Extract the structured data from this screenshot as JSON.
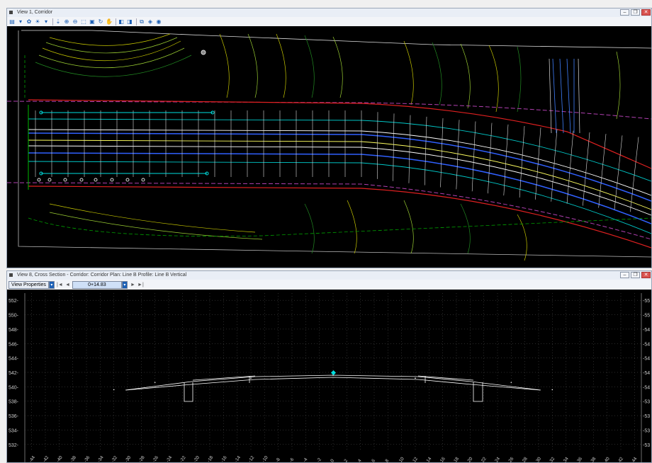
{
  "view1": {
    "title": "View 1, Corridor",
    "toolbar_icons": [
      "view-attributes-icon",
      "dropdown-icon",
      "display-style-icon",
      "brightness-icon",
      "dropdown-icon",
      "update-icon",
      "zoom-in-icon",
      "zoom-out-icon",
      "window-area-icon",
      "fit-view-icon",
      "rotate-icon",
      "pan-icon",
      "previous-view-icon",
      "next-view-icon",
      "copy-view-icon",
      "view-3d-icon",
      "clip-volume-icon"
    ]
  },
  "view8": {
    "title": "View 8, Cross Section - Corridor: Corridor Plan: Line B Profile: Line B Vertical",
    "view_properties_label": "View Properties",
    "station_value": "0+14.83",
    "nav_first": "|◄",
    "nav_prev": "◄",
    "nav_next": "►",
    "nav_last": "►|"
  },
  "window_buttons": {
    "minimize": "–",
    "restore": "❐",
    "close": "✕"
  },
  "chart_data": {
    "type": "line",
    "y_ticks": [
      "552",
      "550",
      "548",
      "546",
      "544",
      "542",
      "540",
      "538",
      "536",
      "534",
      "532"
    ],
    "y_ticks_right": [
      "55",
      "55",
      "54",
      "54",
      "54",
      "54",
      "54",
      "53",
      "53",
      "53",
      "53"
    ],
    "x_ticks": [
      "-44",
      "-42",
      "-40",
      "-38",
      "-36",
      "-34",
      "-32",
      "-30",
      "-28",
      "-26",
      "-24",
      "-22",
      "-20",
      "-18",
      "-16",
      "-14",
      "-12",
      "-10",
      "-8",
      "-6",
      "-4",
      "-2",
      "0",
      "2",
      "4",
      "6",
      "8",
      "10",
      "12",
      "14",
      "16",
      "18",
      "20",
      "22",
      "24",
      "26",
      "28",
      "30",
      "32",
      "34",
      "36",
      "38",
      "40",
      "42",
      "44"
    ],
    "ylim": [
      531,
      553
    ],
    "xlim": [
      -45,
      45
    ],
    "grid": true,
    "series": [
      {
        "x": [
          -32,
          -26,
          -12,
          0,
          12,
          26,
          32
        ],
        "y": [
          539.6,
          540.6,
          541.2,
          541.6,
          541.2,
          540.6,
          539.6
        ]
      }
    ]
  }
}
